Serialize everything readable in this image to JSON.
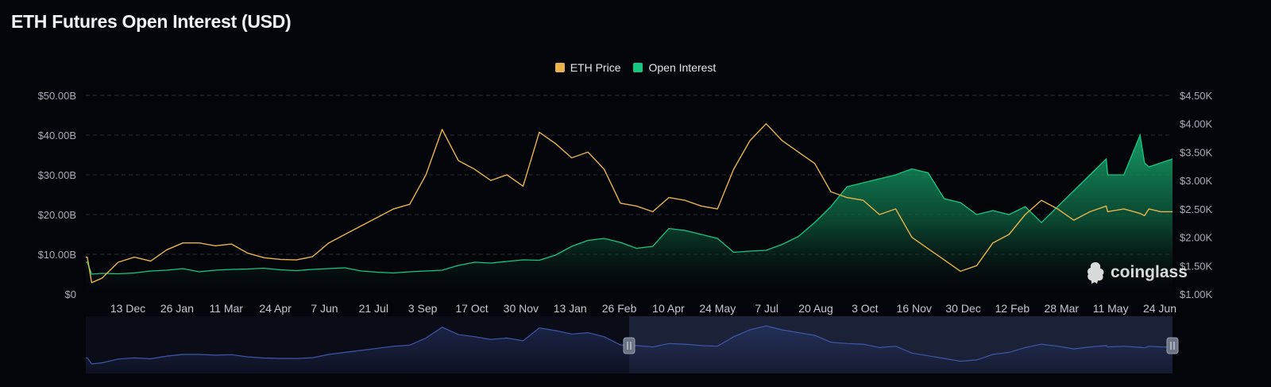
{
  "title": "ETH Futures Open Interest (USD)",
  "legend": [
    {
      "label": "ETH Price",
      "color": "#e8b34a"
    },
    {
      "label": "Open Interest",
      "color": "#16c784"
    }
  ],
  "watermark": "coinglass",
  "colors": {
    "background": "#04050a",
    "price_line": "#e8b34a",
    "oi_line": "#16c784",
    "oi_fill_top": "#16a36a",
    "navigator_line": "#3f56a8",
    "navigator_selection": "#1b2238",
    "grid": "#2a2d36",
    "axis_text": "#a9adb8"
  },
  "chart_data": {
    "type": "area",
    "title": "ETH Futures Open Interest (USD)",
    "x_tick_labels": [
      "13 Dec",
      "26 Jan",
      "11 Mar",
      "24 Apr",
      "7 Jun",
      "21 Jul",
      "3 Sep",
      "17 Oct",
      "30 Nov",
      "13 Jan",
      "26 Feb",
      "10 Apr",
      "24 May",
      "7 Jul",
      "20 Aug",
      "3 Oct",
      "16 Nov",
      "30 Dec",
      "12 Feb",
      "28 Mar",
      "11 May",
      "24 Jun"
    ],
    "y_left": {
      "ticks": [
        "$0",
        "$10.00B",
        "$20.00B",
        "$30.00B",
        "$40.00B",
        "$50.00B"
      ],
      "range": [
        0,
        50
      ],
      "unit": "B USD"
    },
    "y_right": {
      "ticks": [
        "$1.00K",
        "$1.50K",
        "$2.00K",
        "$2.50K",
        "$3.00K",
        "$3.50K",
        "$4.00K",
        "$4.50K"
      ],
      "range": [
        1000,
        4500
      ],
      "unit": "USD"
    },
    "grid": true,
    "legend_position": "top-center",
    "series": [
      {
        "name": "Open Interest",
        "axis": "left",
        "style": "area",
        "x": [
          0,
          2,
          8,
          22,
          44,
          66,
          88,
          110,
          132,
          154,
          176,
          198,
          220,
          242,
          264,
          286,
          308,
          330,
          352,
          374,
          396,
          418,
          440,
          462,
          484,
          506,
          528,
          550,
          572,
          594,
          616,
          638,
          660,
          682,
          704,
          726,
          748,
          770,
          792,
          814,
          836,
          858,
          880,
          902,
          924,
          946,
          968,
          990,
          1012,
          1034,
          1056,
          1078,
          1100,
          1122,
          1144,
          1166,
          1188,
          1210,
          1232,
          1254,
          1276,
          1298,
          1320,
          1342,
          1364,
          1386,
          1388,
          1410,
          1432,
          1438,
          1444,
          1460,
          1476
        ],
        "values": [
          8.0,
          8.0,
          5.0,
          5.2,
          5.1,
          5.3,
          5.8,
          6.0,
          6.4,
          5.6,
          6.0,
          6.2,
          6.3,
          6.5,
          6.1,
          5.9,
          6.2,
          6.4,
          6.6,
          5.8,
          5.5,
          5.3,
          5.6,
          5.8,
          6.0,
          7.2,
          8.0,
          7.8,
          8.2,
          8.6,
          8.5,
          9.8,
          12.0,
          13.5,
          14.0,
          13.0,
          11.5,
          12.0,
          16.5,
          16.0,
          15.0,
          14.0,
          10.5,
          10.8,
          11.0,
          12.5,
          14.5,
          18.0,
          22.0,
          27.0,
          28.0,
          29.0,
          30.0,
          31.5,
          30.5,
          24.0,
          23.0,
          20.0,
          21.0,
          20.0,
          22.0,
          18.0,
          22.0,
          26.0,
          30.0,
          34.0,
          30.0,
          30.0,
          40.0,
          33.0,
          32.0,
          33.0,
          34.0
        ]
      },
      {
        "name": "ETH Price",
        "axis": "right",
        "style": "line",
        "x": [
          0,
          2,
          8,
          22,
          44,
          66,
          88,
          110,
          132,
          154,
          176,
          198,
          220,
          242,
          264,
          286,
          308,
          330,
          352,
          374,
          396,
          418,
          440,
          462,
          484,
          506,
          528,
          550,
          572,
          594,
          616,
          638,
          660,
          682,
          704,
          726,
          748,
          770,
          792,
          814,
          836,
          858,
          880,
          902,
          924,
          946,
          968,
          990,
          1012,
          1034,
          1056,
          1078,
          1100,
          1122,
          1144,
          1166,
          1188,
          1210,
          1232,
          1254,
          1276,
          1298,
          1320,
          1342,
          1364,
          1386,
          1388,
          1410,
          1432,
          1438,
          1444,
          1460,
          1476
        ],
        "values": [
          1650,
          1650,
          1200,
          1280,
          1560,
          1650,
          1580,
          1780,
          1900,
          1900,
          1850,
          1880,
          1720,
          1640,
          1610,
          1600,
          1660,
          1900,
          2050,
          2200,
          2350,
          2500,
          2580,
          3100,
          3900,
          3350,
          3200,
          3000,
          3100,
          2900,
          3850,
          3650,
          3400,
          3500,
          3200,
          2600,
          2550,
          2450,
          2700,
          2650,
          2550,
          2500,
          3200,
          3700,
          4000,
          3700,
          3500,
          3300,
          2800,
          2700,
          2650,
          2400,
          2500,
          2000,
          1800,
          1600,
          1400,
          1500,
          1900,
          2050,
          2400,
          2650,
          2500,
          2300,
          2450,
          2550,
          2450,
          2500,
          2420,
          2380,
          2500,
          2450,
          2450
        ]
      }
    ],
    "navigator": {
      "selection_start_fraction": 0.5,
      "selection_end_fraction": 1.0
    }
  }
}
